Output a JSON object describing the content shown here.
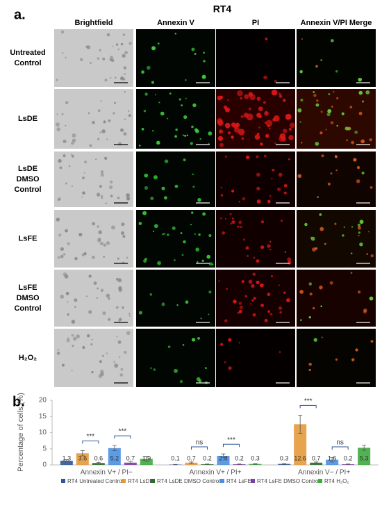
{
  "panel_a": {
    "label": "a.",
    "title": "RT4",
    "columns": [
      "Brightfield",
      "Annexin V",
      "PI",
      "Annexin V/PI Merge"
    ],
    "rows": [
      {
        "label": [
          "Untreated",
          "Control"
        ]
      },
      {
        "label": [
          "LsDE"
        ]
      },
      {
        "label": [
          "LsDE",
          "DMSO",
          "Control"
        ]
      },
      {
        "label": [
          "LsFE"
        ]
      },
      {
        "label": [
          "LsFE",
          "DMSO",
          "Control"
        ]
      },
      {
        "label": [
          "H₂O₂"
        ]
      }
    ]
  },
  "chart_data": {
    "type": "bar",
    "panel_label": "b.",
    "y_label": "Percentage of cells (%)",
    "categories": [
      "Annexin V+ / PI−",
      "Annexin V+ / PI+",
      "Annexin V− / PI+"
    ],
    "ylim": [
      0,
      20
    ],
    "yticks": [
      0,
      5,
      10,
      15,
      20
    ],
    "grid": false,
    "series": [
      {
        "name": "RT4 Untreated Control",
        "color": "#2f5597",
        "values": [
          1.3,
          0.1,
          0.3
        ],
        "errors": [
          0.3,
          0.05,
          0.1
        ]
      },
      {
        "name": "RT4 LsDE",
        "color": "#e49a3a",
        "values": [
          3.6,
          0.7,
          12.6
        ],
        "errors": [
          0.8,
          0.2,
          2.8
        ]
      },
      {
        "name": "RT4 LsDE DMSO Control",
        "color": "#2e6b2e",
        "values": [
          0.6,
          0.2,
          0.7
        ],
        "errors": [
          0.2,
          0.1,
          0.2
        ]
      },
      {
        "name": "RT4 LsFE",
        "color": "#4a90e2",
        "values": [
          5.2,
          2.8,
          1.6
        ],
        "errors": [
          0.8,
          0.6,
          0.7
        ]
      },
      {
        "name": "RT4 LsFE DMSO Control",
        "color": "#7b3fa8",
        "values": [
          0.7,
          0.2,
          0.2
        ],
        "errors": [
          0.3,
          0.1,
          0.1
        ]
      },
      {
        "name": "RT4 H₂O₂",
        "color": "#3daa3d",
        "values": [
          1.9,
          0.3,
          5.3
        ],
        "errors": [
          0.8,
          0.1,
          0.8
        ]
      }
    ],
    "annotations": [
      [
        "***",
        "***"
      ],
      [
        "ns",
        "***"
      ],
      [
        "***",
        "ns"
      ]
    ],
    "legend": "bottom"
  }
}
